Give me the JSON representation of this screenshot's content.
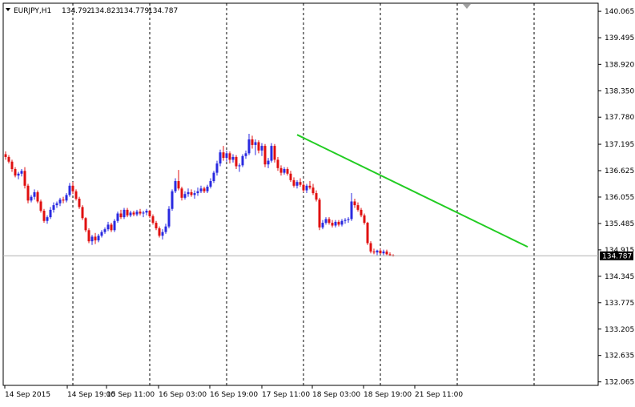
{
  "header": {
    "symbol_timeframe": "EURJPY,H1",
    "open": "134.792",
    "high": "134.823",
    "low": "134.779",
    "close": "134.787"
  },
  "colors": {
    "bull": "#2a2ae0",
    "bear": "#e01010",
    "trendline": "#22cc22",
    "grid": "#000000",
    "price_label_bg": "#000000",
    "price_label_fg": "#ffffff"
  },
  "current_price_label": "134.787",
  "chart_data": {
    "type": "candlestick",
    "title": "EURJPY,H1",
    "y_ticks": [
      "140.065",
      "139.495",
      "138.920",
      "138.350",
      "137.780",
      "137.195",
      "136.625",
      "136.055",
      "135.485",
      "134.915",
      "134.345",
      "133.775",
      "133.205",
      "132.635",
      "132.065"
    ],
    "x_ticks": [
      "14 Sep 2015",
      "14 Sep 19:00",
      "15 Sep 11:00",
      "16 Sep 03:00",
      "16 Sep 19:00",
      "17 Sep 11:00",
      "18 Sep 03:00",
      "18 Sep 19:00",
      "21 Sep 11:00"
    ],
    "ylim": [
      131.99,
      140.24
    ],
    "grid": "vertical dashed at period separators",
    "current_price": 134.787,
    "trendline": {
      "from": {
        "bar": 91,
        "price": 137.4
      },
      "to": {
        "bar": 163,
        "price": 134.98
      }
    },
    "candles": [
      [
        136.98,
        137.04,
        136.86,
        136.92
      ],
      [
        136.92,
        136.96,
        136.78,
        136.82
      ],
      [
        136.82,
        136.86,
        136.6,
        136.66
      ],
      [
        136.66,
        136.7,
        136.48,
        136.52
      ],
      [
        136.52,
        136.6,
        136.44,
        136.56
      ],
      [
        136.56,
        136.66,
        136.5,
        136.62
      ],
      [
        136.62,
        136.7,
        136.24,
        136.3
      ],
      [
        136.3,
        136.34,
        135.92,
        135.98
      ],
      [
        135.98,
        136.1,
        135.94,
        136.06
      ],
      [
        136.06,
        136.22,
        136.0,
        136.16
      ],
      [
        136.16,
        136.2,
        135.92,
        135.96
      ],
      [
        135.96,
        136.0,
        135.72,
        135.76
      ],
      [
        135.76,
        135.8,
        135.5,
        135.54
      ],
      [
        135.54,
        135.66,
        135.48,
        135.62
      ],
      [
        135.62,
        135.84,
        135.58,
        135.78
      ],
      [
        135.78,
        135.94,
        135.72,
        135.88
      ],
      [
        135.88,
        135.96,
        135.82,
        135.92
      ],
      [
        135.92,
        136.04,
        135.86,
        136.0
      ],
      [
        136.0,
        136.06,
        135.92,
        135.98
      ],
      [
        135.98,
        136.14,
        135.94,
        136.1
      ],
      [
        136.1,
        136.36,
        136.06,
        136.3
      ],
      [
        136.3,
        136.38,
        136.12,
        136.18
      ],
      [
        136.18,
        136.22,
        135.98,
        136.02
      ],
      [
        136.02,
        136.06,
        135.8,
        135.84
      ],
      [
        135.84,
        135.88,
        135.56,
        135.6
      ],
      [
        135.6,
        135.62,
        135.3,
        135.34
      ],
      [
        135.34,
        135.38,
        135.06,
        135.1
      ],
      [
        135.1,
        135.24,
        135.02,
        135.2
      ],
      [
        135.2,
        135.28,
        135.04,
        135.12
      ],
      [
        135.12,
        135.26,
        135.08,
        135.22
      ],
      [
        135.22,
        135.34,
        135.18,
        135.3
      ],
      [
        135.3,
        135.4,
        135.26,
        135.36
      ],
      [
        135.36,
        135.52,
        135.32,
        135.46
      ],
      [
        135.46,
        135.5,
        135.3,
        135.34
      ],
      [
        135.34,
        135.58,
        135.3,
        135.54
      ],
      [
        135.54,
        135.74,
        135.5,
        135.7
      ],
      [
        135.7,
        135.78,
        135.58,
        135.62
      ],
      [
        135.62,
        135.82,
        135.58,
        135.78
      ],
      [
        135.78,
        135.82,
        135.62,
        135.66
      ],
      [
        135.66,
        135.76,
        135.62,
        135.72
      ],
      [
        135.72,
        135.76,
        135.64,
        135.68
      ],
      [
        135.68,
        135.78,
        135.64,
        135.74
      ],
      [
        135.74,
        135.8,
        135.66,
        135.7
      ],
      [
        135.7,
        135.76,
        135.62,
        135.72
      ],
      [
        135.72,
        135.8,
        135.66,
        135.76
      ],
      [
        135.76,
        135.78,
        135.6,
        135.64
      ],
      [
        135.64,
        135.68,
        135.46,
        135.5
      ],
      [
        135.5,
        135.54,
        135.34,
        135.38
      ],
      [
        135.38,
        135.42,
        135.18,
        135.22
      ],
      [
        135.22,
        135.36,
        135.14,
        135.3
      ],
      [
        135.3,
        135.48,
        135.26,
        135.42
      ],
      [
        135.42,
        135.86,
        135.38,
        135.8
      ],
      [
        135.8,
        136.22,
        135.76,
        136.18
      ],
      [
        136.18,
        136.46,
        136.14,
        136.4
      ],
      [
        136.4,
        136.64,
        136.2,
        136.24
      ],
      [
        136.24,
        136.28,
        135.98,
        136.04
      ],
      [
        136.04,
        136.18,
        136.0,
        136.12
      ],
      [
        136.12,
        136.24,
        136.06,
        136.16
      ],
      [
        136.16,
        136.22,
        136.06,
        136.1
      ],
      [
        136.1,
        136.2,
        136.02,
        136.14
      ],
      [
        136.14,
        136.26,
        136.08,
        136.18
      ],
      [
        136.18,
        136.3,
        136.14,
        136.24
      ],
      [
        136.24,
        136.28,
        136.14,
        136.18
      ],
      [
        136.18,
        136.32,
        136.14,
        136.28
      ],
      [
        136.28,
        136.46,
        136.24,
        136.4
      ],
      [
        136.4,
        136.62,
        136.36,
        136.58
      ],
      [
        136.58,
        136.84,
        136.52,
        136.78
      ],
      [
        136.78,
        137.08,
        136.72,
        137.02
      ],
      [
        137.02,
        137.16,
        136.84,
        136.9
      ],
      [
        136.9,
        137.06,
        136.82,
        137.0
      ],
      [
        137.0,
        137.04,
        136.78,
        136.86
      ],
      [
        136.86,
        136.98,
        136.8,
        136.92
      ],
      [
        136.92,
        136.96,
        136.66,
        136.72
      ],
      [
        136.72,
        136.78,
        136.6,
        136.74
      ],
      [
        136.74,
        136.98,
        136.7,
        136.94
      ],
      [
        136.94,
        137.06,
        136.88,
        137.0
      ],
      [
        137.0,
        137.42,
        136.96,
        137.3
      ],
      [
        137.3,
        137.38,
        137.1,
        137.18
      ],
      [
        137.18,
        137.3,
        136.96,
        137.24
      ],
      [
        137.24,
        137.28,
        137.0,
        137.06
      ],
      [
        137.06,
        137.22,
        136.94,
        137.16
      ],
      [
        137.16,
        137.2,
        136.7,
        136.76
      ],
      [
        136.76,
        136.9,
        136.68,
        136.84
      ],
      [
        136.84,
        137.22,
        136.8,
        137.16
      ],
      [
        137.16,
        137.2,
        136.8,
        136.86
      ],
      [
        136.86,
        136.92,
        136.62,
        136.68
      ],
      [
        136.68,
        136.74,
        136.52,
        136.58
      ],
      [
        136.58,
        136.7,
        136.54,
        136.66
      ],
      [
        136.66,
        136.7,
        136.52,
        136.56
      ],
      [
        136.56,
        136.62,
        136.38,
        136.42
      ],
      [
        136.42,
        136.48,
        136.26,
        136.3
      ],
      [
        136.3,
        136.42,
        136.24,
        136.38
      ],
      [
        136.38,
        136.46,
        136.28,
        136.32
      ],
      [
        136.32,
        136.36,
        136.16,
        136.2
      ],
      [
        136.2,
        136.34,
        136.14,
        136.3
      ],
      [
        136.3,
        136.4,
        136.22,
        136.26
      ],
      [
        136.26,
        136.34,
        136.1,
        136.14
      ],
      [
        136.14,
        136.2,
        135.96,
        136.0
      ],
      [
        136.0,
        136.04,
        135.34,
        135.4
      ],
      [
        135.4,
        135.56,
        135.36,
        135.5
      ],
      [
        135.5,
        135.62,
        135.46,
        135.58
      ],
      [
        135.58,
        135.62,
        135.46,
        135.5
      ],
      [
        135.5,
        135.56,
        135.4,
        135.44
      ],
      [
        135.44,
        135.56,
        135.4,
        135.52
      ],
      [
        135.52,
        135.56,
        135.42,
        135.46
      ],
      [
        135.46,
        135.58,
        135.42,
        135.54
      ],
      [
        135.54,
        135.6,
        135.48,
        135.56
      ],
      [
        135.56,
        135.62,
        135.5,
        135.58
      ],
      [
        135.58,
        136.14,
        135.54,
        135.96
      ],
      [
        135.96,
        136.02,
        135.82,
        135.88
      ],
      [
        135.88,
        135.94,
        135.74,
        135.78
      ],
      [
        135.78,
        135.82,
        135.62,
        135.66
      ],
      [
        135.66,
        135.7,
        135.46,
        135.5
      ],
      [
        135.5,
        135.52,
        135.02,
        135.06
      ],
      [
        135.06,
        135.1,
        134.84,
        134.88
      ],
      [
        134.88,
        134.94,
        134.82,
        134.86
      ],
      [
        134.86,
        134.92,
        134.8,
        134.9
      ],
      [
        134.9,
        134.94,
        134.82,
        134.84
      ],
      [
        134.84,
        134.92,
        134.8,
        134.88
      ],
      [
        134.88,
        134.92,
        134.8,
        134.82
      ],
      [
        134.82,
        134.86,
        134.78,
        134.8
      ],
      [
        134.8,
        134.82,
        134.77,
        134.787
      ]
    ]
  }
}
